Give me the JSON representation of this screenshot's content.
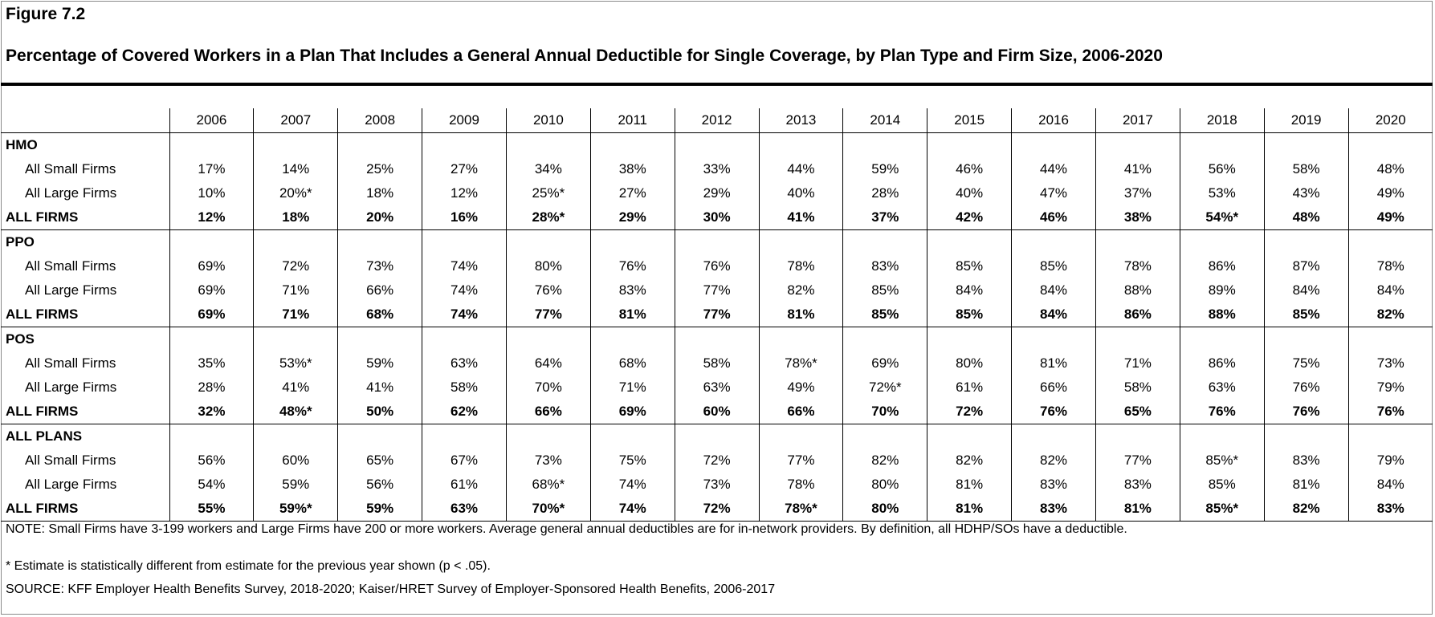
{
  "figure_label": "Figure 7.2",
  "title": "Percentage of Covered Workers in a Plan That Includes a General Annual Deductible for Single Coverage, by Plan Type and Firm Size, 2006-2020",
  "notes": {
    "note": "NOTE: Small Firms have 3-199 workers and Large Firms have 200 or more workers. Average general annual deductibles are for in-network providers. By definition, all HDHP/SOs have a deductible.",
    "significance": "* Estimate is statistically different from estimate for the previous year shown (p < .05).",
    "source": "SOURCE: KFF Employer Health Benefits Survey, 2018-2020; Kaiser/HRET Survey of Employer-Sponsored Health Benefits, 2006-2017"
  },
  "chart_data": {
    "type": "table",
    "columns": [
      "2006",
      "2007",
      "2008",
      "2009",
      "2010",
      "2011",
      "2012",
      "2013",
      "2014",
      "2015",
      "2016",
      "2017",
      "2018",
      "2019",
      "2020"
    ],
    "groups": [
      {
        "name": "HMO",
        "rows": [
          {
            "label": "All Small Firms",
            "values": [
              "17%",
              "14%",
              "25%",
              "27%",
              "34%",
              "38%",
              "33%",
              "44%",
              "59%",
              "46%",
              "44%",
              "41%",
              "56%",
              "58%",
              "48%"
            ]
          },
          {
            "label": "All Large Firms",
            "values": [
              "10%",
              "20%*",
              "18%",
              "12%",
              "25%*",
              "27%",
              "29%",
              "40%",
              "28%",
              "40%",
              "47%",
              "37%",
              "53%",
              "43%",
              "49%"
            ]
          },
          {
            "label": "ALL FIRMS",
            "total": true,
            "values": [
              "12%",
              "18%",
              "20%",
              "16%",
              "28%*",
              "29%",
              "30%",
              "41%",
              "37%",
              "42%",
              "46%",
              "38%",
              "54%*",
              "48%",
              "49%"
            ]
          }
        ]
      },
      {
        "name": "PPO",
        "rows": [
          {
            "label": "All Small Firms",
            "values": [
              "69%",
              "72%",
              "73%",
              "74%",
              "80%",
              "76%",
              "76%",
              "78%",
              "83%",
              "85%",
              "85%",
              "78%",
              "86%",
              "87%",
              "78%"
            ]
          },
          {
            "label": "All Large Firms",
            "values": [
              "69%",
              "71%",
              "66%",
              "74%",
              "76%",
              "83%",
              "77%",
              "82%",
              "85%",
              "84%",
              "84%",
              "88%",
              "89%",
              "84%",
              "84%"
            ]
          },
          {
            "label": "ALL FIRMS",
            "total": true,
            "values": [
              "69%",
              "71%",
              "68%",
              "74%",
              "77%",
              "81%",
              "77%",
              "81%",
              "85%",
              "85%",
              "84%",
              "86%",
              "88%",
              "85%",
              "82%"
            ]
          }
        ]
      },
      {
        "name": "POS",
        "rows": [
          {
            "label": "All Small Firms",
            "values": [
              "35%",
              "53%*",
              "59%",
              "63%",
              "64%",
              "68%",
              "58%",
              "78%*",
              "69%",
              "80%",
              "81%",
              "71%",
              "86%",
              "75%",
              "73%"
            ]
          },
          {
            "label": "All Large Firms",
            "values": [
              "28%",
              "41%",
              "41%",
              "58%",
              "70%",
              "71%",
              "63%",
              "49%",
              "72%*",
              "61%",
              "66%",
              "58%",
              "63%",
              "76%",
              "79%"
            ]
          },
          {
            "label": "ALL FIRMS",
            "total": true,
            "values": [
              "32%",
              "48%*",
              "50%",
              "62%",
              "66%",
              "69%",
              "60%",
              "66%",
              "70%",
              "72%",
              "76%",
              "65%",
              "76%",
              "76%",
              "76%"
            ]
          }
        ]
      },
      {
        "name": "ALL PLANS",
        "rows": [
          {
            "label": "All Small Firms",
            "values": [
              "56%",
              "60%",
              "65%",
              "67%",
              "73%",
              "75%",
              "72%",
              "77%",
              "82%",
              "82%",
              "82%",
              "77%",
              "85%*",
              "83%",
              "79%"
            ]
          },
          {
            "label": "All Large Firms",
            "values": [
              "54%",
              "59%",
              "56%",
              "61%",
              "68%*",
              "74%",
              "73%",
              "78%",
              "80%",
              "81%",
              "83%",
              "83%",
              "85%",
              "81%",
              "84%"
            ]
          },
          {
            "label": "ALL FIRMS",
            "total": true,
            "values": [
              "55%",
              "59%*",
              "59%",
              "63%",
              "70%*",
              "74%",
              "72%",
              "78%*",
              "80%",
              "81%",
              "83%",
              "81%",
              "85%*",
              "82%",
              "83%"
            ]
          }
        ]
      }
    ]
  }
}
